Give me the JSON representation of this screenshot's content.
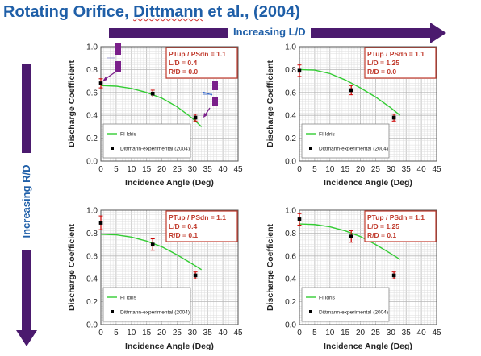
{
  "slide": {
    "title_prefix": "Rotating Orifice, ",
    "title_author": "Dittmann",
    "title_suffix": " et al., (2004)",
    "horizontal_arrow_label": "Increasing L/D",
    "vertical_arrow_label": "Increasing R/D",
    "arrow_color": "#4b1a6e",
    "title_color": "#1f5fa8"
  },
  "chart_data": [
    {
      "type": "line",
      "xlabel": "Incidence Angle (Deg)",
      "ylabel": "Discharge Coefficient",
      "xlim": [
        0,
        45
      ],
      "ylim": [
        0,
        1.0
      ],
      "xticks": [
        "0",
        "5",
        "10",
        "15",
        "20",
        "25",
        "30",
        "35",
        "40",
        "45"
      ],
      "yticks": [
        "0.0",
        "0.2",
        "0.4",
        "0.6",
        "0.8",
        "1.0"
      ],
      "grid": true,
      "legend_position": "bottom-left",
      "annotation": [
        "PTup / PSdn = 1.1",
        "L/D = 0.4",
        "R/D = 0.0"
      ],
      "series": [
        {
          "name": "FI Idris",
          "kind": "line",
          "color": "#33cc33",
          "x": [
            0,
            5,
            10,
            15,
            20,
            25,
            30,
            33
          ],
          "y": [
            0.66,
            0.655,
            0.635,
            0.6,
            0.55,
            0.475,
            0.375,
            0.3
          ]
        },
        {
          "name": "Dittmann-experimental (2004)",
          "kind": "scatter",
          "color": "#000000",
          "error_color": "#cc0000",
          "x": [
            0,
            17,
            31
          ],
          "y": [
            0.68,
            0.59,
            0.38
          ],
          "err": [
            0.04,
            0.03,
            0.03
          ]
        }
      ],
      "has_orifice_icons": true
    },
    {
      "type": "line",
      "xlabel": "Incidence Angle (Deg)",
      "ylabel": "Discharge Coefficient",
      "xlim": [
        0,
        45
      ],
      "ylim": [
        0,
        1.0
      ],
      "xticks": [
        "0",
        "5",
        "10",
        "15",
        "20",
        "25",
        "30",
        "35",
        "40",
        "45"
      ],
      "yticks": [
        "0.0",
        "0.2",
        "0.4",
        "0.6",
        "0.8",
        "1.0"
      ],
      "grid": true,
      "legend_position": "bottom-left",
      "annotation": [
        "PTup / PSdn = 1.1",
        "L/D = 1.25",
        "R/D = 0.0"
      ],
      "series": [
        {
          "name": "FI Idris",
          "kind": "line",
          "color": "#33cc33",
          "x": [
            0,
            5,
            10,
            15,
            20,
            25,
            30,
            33
          ],
          "y": [
            0.8,
            0.795,
            0.765,
            0.71,
            0.64,
            0.56,
            0.465,
            0.4
          ]
        },
        {
          "name": "Dittmann-experimental (2004)",
          "kind": "scatter",
          "color": "#000000",
          "error_color": "#cc0000",
          "x": [
            0,
            17,
            31
          ],
          "y": [
            0.79,
            0.62,
            0.38
          ],
          "err": [
            0.05,
            0.04,
            0.03
          ]
        }
      ],
      "has_orifice_icons": false
    },
    {
      "type": "line",
      "xlabel": "Incidence Angle (Deg)",
      "ylabel": "Discharge Coefficient",
      "xlim": [
        0,
        45
      ],
      "ylim": [
        0,
        1.0
      ],
      "xticks": [
        "0",
        "5",
        "10",
        "15",
        "20",
        "25",
        "30",
        "35",
        "40",
        "45"
      ],
      "yticks": [
        "0.0",
        "0.2",
        "0.4",
        "0.6",
        "0.8",
        "1.0"
      ],
      "grid": true,
      "legend_position": "bottom-left",
      "annotation": [
        "PTup / PSdn = 1.1",
        "L/D = 0.4",
        "R/D = 0.1"
      ],
      "series": [
        {
          "name": "FI Idris",
          "kind": "line",
          "color": "#33cc33",
          "x": [
            0,
            5,
            10,
            15,
            20,
            25,
            30,
            33
          ],
          "y": [
            0.79,
            0.785,
            0.765,
            0.73,
            0.68,
            0.61,
            0.53,
            0.48
          ]
        },
        {
          "name": "Dittmann-experimental (2004)",
          "kind": "scatter",
          "color": "#000000",
          "error_color": "#cc0000",
          "x": [
            0,
            17,
            31
          ],
          "y": [
            0.89,
            0.7,
            0.43
          ],
          "err": [
            0.06,
            0.05,
            0.03
          ]
        }
      ],
      "has_orifice_icons": false
    },
    {
      "type": "line",
      "xlabel": "Incidence Angle (Deg)",
      "ylabel": "Discharge Coefficient",
      "xlim": [
        0,
        45
      ],
      "ylim": [
        0,
        1.0
      ],
      "xticks": [
        "0",
        "5",
        "10",
        "15",
        "20",
        "25",
        "30",
        "35",
        "40",
        "45"
      ],
      "yticks": [
        "0.0",
        "0.2",
        "0.4",
        "0.6",
        "0.8",
        "1.0"
      ],
      "grid": true,
      "legend_position": "bottom-left",
      "annotation": [
        "PTup / PSdn = 1.1",
        "L/D = 1.25",
        "R/D = 0.1"
      ],
      "series": [
        {
          "name": "FI Idris",
          "kind": "line",
          "color": "#33cc33",
          "x": [
            0,
            5,
            10,
            15,
            20,
            25,
            30,
            33
          ],
          "y": [
            0.88,
            0.875,
            0.855,
            0.82,
            0.77,
            0.7,
            0.62,
            0.57
          ]
        },
        {
          "name": "Dittmann-experimental (2004)",
          "kind": "scatter",
          "color": "#000000",
          "error_color": "#cc0000",
          "x": [
            0,
            17,
            31
          ],
          "y": [
            0.92,
            0.77,
            0.43
          ],
          "err": [
            0.05,
            0.05,
            0.03
          ]
        }
      ],
      "has_orifice_icons": false
    }
  ]
}
